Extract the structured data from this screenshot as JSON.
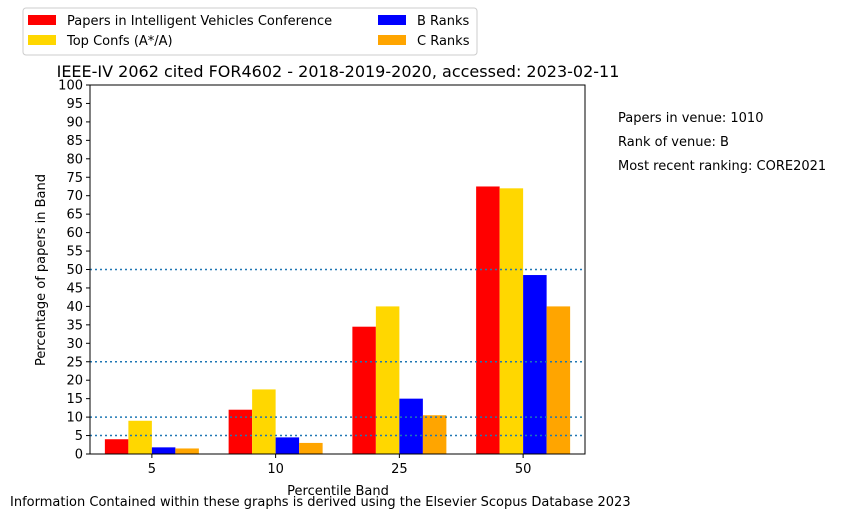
{
  "chart_data": {
    "type": "bar",
    "title": "IEEE-IV 2062 cited FOR4602 - 2018-2019-2020, accessed: 2023-02-11",
    "xlabel": "Percentile Band",
    "ylabel": "Percentage of papers in Band",
    "categories": [
      "5",
      "10",
      "25",
      "50"
    ],
    "series": [
      {
        "name": "Papers in Intelligent Vehicles Conference",
        "color": "#ff0000",
        "values": [
          4.0,
          12.0,
          34.5,
          72.5
        ]
      },
      {
        "name": "Top Confs (A*/A)",
        "color": "#ffd700",
        "values": [
          9.0,
          17.5,
          40.0,
          72.0
        ]
      },
      {
        "name": "B Ranks",
        "color": "#0000ff",
        "values": [
          1.8,
          4.5,
          15.0,
          48.5
        ]
      },
      {
        "name": "C Ranks",
        "color": "#ffa500",
        "values": [
          1.5,
          3.0,
          10.5,
          40.0
        ]
      }
    ],
    "ylim": [
      0,
      100
    ],
    "yticks": [
      "0",
      "5",
      "10",
      "15",
      "20",
      "25",
      "30",
      "35",
      "40",
      "45",
      "50",
      "55",
      "60",
      "65",
      "70",
      "75",
      "80",
      "85",
      "90",
      "95",
      "100"
    ],
    "reference_lines": [
      5,
      10,
      25,
      50
    ],
    "reference_line_color": "#1f77b4",
    "legend_position": "top-left, above plot, 2 columns",
    "grid": false
  },
  "side_notes": {
    "papers": "Papers in venue: 1010",
    "rank": "Rank of venue: B",
    "ranking": "Most recent ranking: CORE2021"
  },
  "footer": "Information Contained within these graphs is derived using the Elsevier Scopus Database 2023"
}
